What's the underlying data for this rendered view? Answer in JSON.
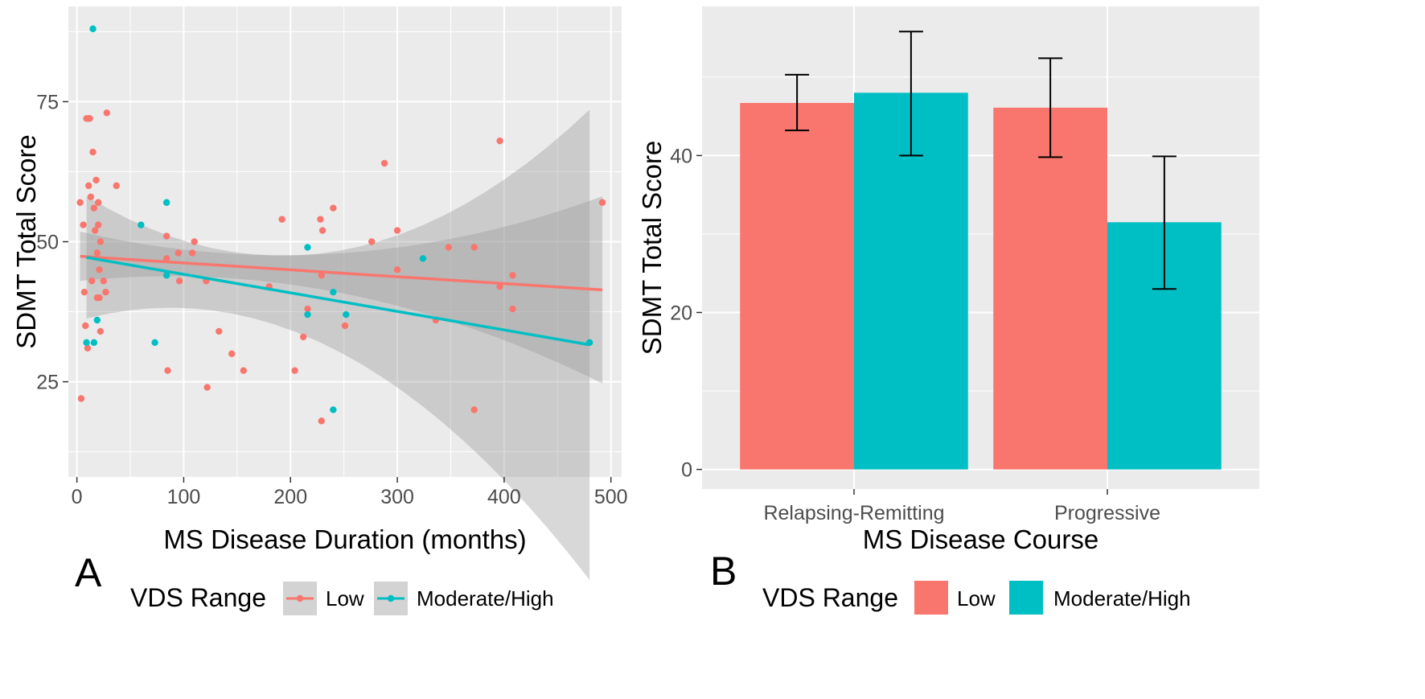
{
  "chart_data": [
    {
      "type": "scatter",
      "panel_label": "A",
      "xlabel": "MS Disease Duration (months)",
      "ylabel": "SDMT Total Score",
      "xlim": [
        -8,
        510
      ],
      "ylim": [
        8,
        92
      ],
      "xticks": [
        0,
        100,
        200,
        300,
        400,
        500
      ],
      "yticks": [
        25,
        50,
        75
      ],
      "grid": true,
      "legend": {
        "title": "VDS Range",
        "position": "bottom",
        "entries": [
          "Low",
          "Moderate/High"
        ]
      },
      "series": [
        {
          "name": "Low",
          "color": "#F8766D",
          "points": [
            [
              3,
              57
            ],
            [
              4,
              22
            ],
            [
              6,
              53
            ],
            [
              7,
              41
            ],
            [
              8,
              35
            ],
            [
              9,
              72
            ],
            [
              10,
              31
            ],
            [
              11,
              72
            ],
            [
              12,
              72
            ],
            [
              11,
              60
            ],
            [
              13,
              58
            ],
            [
              14,
              43
            ],
            [
              15,
              66
            ],
            [
              16,
              56
            ],
            [
              17,
              52
            ],
            [
              18,
              61
            ],
            [
              19,
              48
            ],
            [
              19,
              40
            ],
            [
              20,
              57
            ],
            [
              20,
              53
            ],
            [
              21,
              45
            ],
            [
              21,
              40
            ],
            [
              22,
              34
            ],
            [
              22,
              50
            ],
            [
              25,
              43
            ],
            [
              27,
              41
            ],
            [
              28,
              73
            ],
            [
              37,
              60
            ],
            [
              84,
              51
            ],
            [
              84,
              47
            ],
            [
              85,
              27
            ],
            [
              95,
              48
            ],
            [
              96,
              43
            ],
            [
              108,
              48
            ],
            [
              110,
              50
            ],
            [
              121,
              43
            ],
            [
              122,
              24
            ],
            [
              133,
              34
            ],
            [
              145,
              30
            ],
            [
              156,
              27
            ],
            [
              180,
              42
            ],
            [
              192,
              54
            ],
            [
              204,
              27
            ],
            [
              212,
              33
            ],
            [
              216,
              38
            ],
            [
              228,
              54
            ],
            [
              229,
              44
            ],
            [
              230,
              52
            ],
            [
              229,
              18
            ],
            [
              240,
              56
            ],
            [
              251,
              35
            ],
            [
              276,
              50
            ],
            [
              288,
              64
            ],
            [
              300,
              52
            ],
            [
              300,
              45
            ],
            [
              336,
              36
            ],
            [
              348,
              49
            ],
            [
              372,
              49
            ],
            [
              372,
              20
            ],
            [
              396,
              68
            ],
            [
              396,
              42
            ],
            [
              408,
              38
            ],
            [
              408,
              44
            ],
            [
              492,
              57
            ]
          ],
          "fit": {
            "x": [
              3,
              492
            ],
            "y": [
              47.4,
              41.4
            ]
          }
        },
        {
          "name": "Moderate/High",
          "color": "#00BFC4",
          "points": [
            [
              9,
              32
            ],
            [
              15,
              88
            ],
            [
              16,
              32
            ],
            [
              19,
              36
            ],
            [
              60,
              53
            ],
            [
              73,
              32
            ],
            [
              84,
              57
            ],
            [
              84,
              44
            ],
            [
              216,
              49
            ],
            [
              216,
              37
            ],
            [
              240,
              41
            ],
            [
              240,
              20
            ],
            [
              252,
              37
            ],
            [
              324,
              47
            ],
            [
              480,
              32
            ]
          ],
          "fit": {
            "x": [
              9,
              480
            ],
            "y": [
              47.2,
              31.6
            ]
          }
        }
      ]
    },
    {
      "type": "bar",
      "panel_label": "B",
      "xlabel": "MS Disease Course",
      "ylabel": "SDMT Total Score",
      "ylim": [
        -2.5,
        59
      ],
      "yticks": [
        0,
        20,
        40
      ],
      "grid": true,
      "categories": [
        "Relapsing-Remitting",
        "Progressive"
      ],
      "legend": {
        "title": "VDS Range",
        "position": "bottom",
        "entries": [
          "Low",
          "Moderate/High"
        ]
      },
      "series": [
        {
          "name": "Low",
          "color": "#F8766D",
          "values": [
            46.7,
            46.1
          ],
          "error_low": [
            43.2,
            39.8
          ],
          "error_high": [
            50.3,
            52.4
          ]
        },
        {
          "name": "Moderate/High",
          "color": "#00BFC4",
          "values": [
            48.0,
            31.5
          ],
          "error_low": [
            40.0,
            23.0
          ],
          "error_high": [
            55.8,
            39.9
          ]
        }
      ]
    }
  ]
}
